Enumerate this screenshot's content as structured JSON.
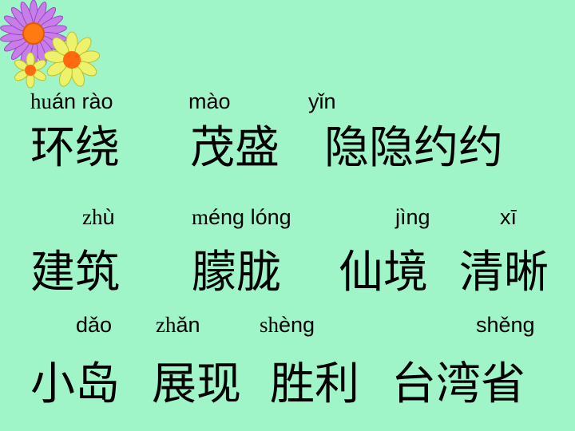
{
  "rows": [
    {
      "pinyin": [
        {
          "initial": "hu",
          "rest": "án rào"
        },
        {
          "initial": "",
          "rest": "mào"
        },
        {
          "initial": "",
          "rest": "yǐn"
        }
      ],
      "words": [
        "环绕",
        "茂盛",
        "隐隐约约"
      ]
    },
    {
      "pinyin": [
        {
          "initial": "zh",
          "rest": "ù"
        },
        {
          "initial": "m",
          "rest": "éng lóng"
        },
        {
          "initial": "",
          "rest": "jìng"
        },
        {
          "initial": "",
          "rest": "xī"
        }
      ],
      "words": [
        "建筑",
        "朦胧",
        "仙境",
        "清晰"
      ]
    },
    {
      "pinyin": [
        {
          "initial": "",
          "rest": "dǎo"
        },
        {
          "initial": "zh",
          "rest": "ǎn"
        },
        {
          "initial": "sh",
          "rest": "èng"
        },
        {
          "initial": "",
          "rest": "shěng"
        }
      ],
      "words": [
        "小岛",
        "展现",
        "胜利",
        "台湾省"
      ]
    }
  ],
  "decoration": {
    "icon": "flower-cluster-icon",
    "colors": [
      "#b066e0",
      "#f0f060",
      "#ff7a10"
    ]
  }
}
